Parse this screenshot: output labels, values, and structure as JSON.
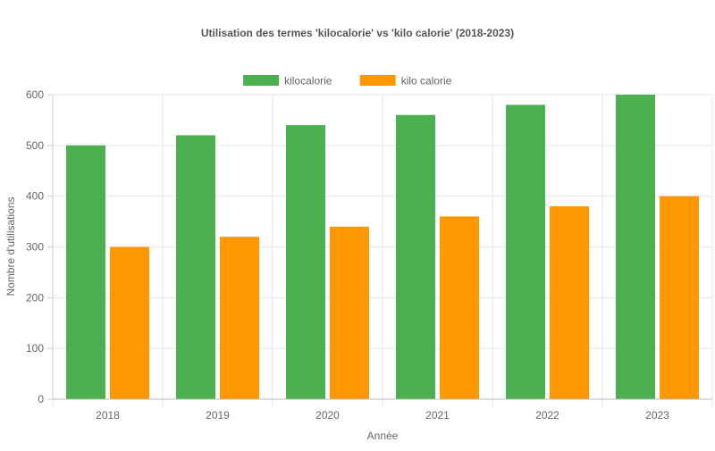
{
  "chart_data": {
    "type": "bar",
    "title": "Utilisation des termes 'kilocalorie' vs 'kilo calorie' (2018-2023)",
    "xlabel": "Année",
    "ylabel": "Nombre d'utilisations",
    "categories": [
      "2018",
      "2019",
      "2020",
      "2021",
      "2022",
      "2023"
    ],
    "series": [
      {
        "name": "kilocalorie",
        "values": [
          500,
          520,
          540,
          560,
          580,
          600
        ],
        "color": "#4caf50"
      },
      {
        "name": "kilo calorie",
        "values": [
          300,
          320,
          340,
          360,
          380,
          400
        ],
        "color": "#ff9800"
      }
    ],
    "ylim": [
      0,
      600
    ],
    "yticks": [
      0,
      100,
      200,
      300,
      400,
      500,
      600
    ],
    "grid": true,
    "legend_position": "top-center"
  }
}
